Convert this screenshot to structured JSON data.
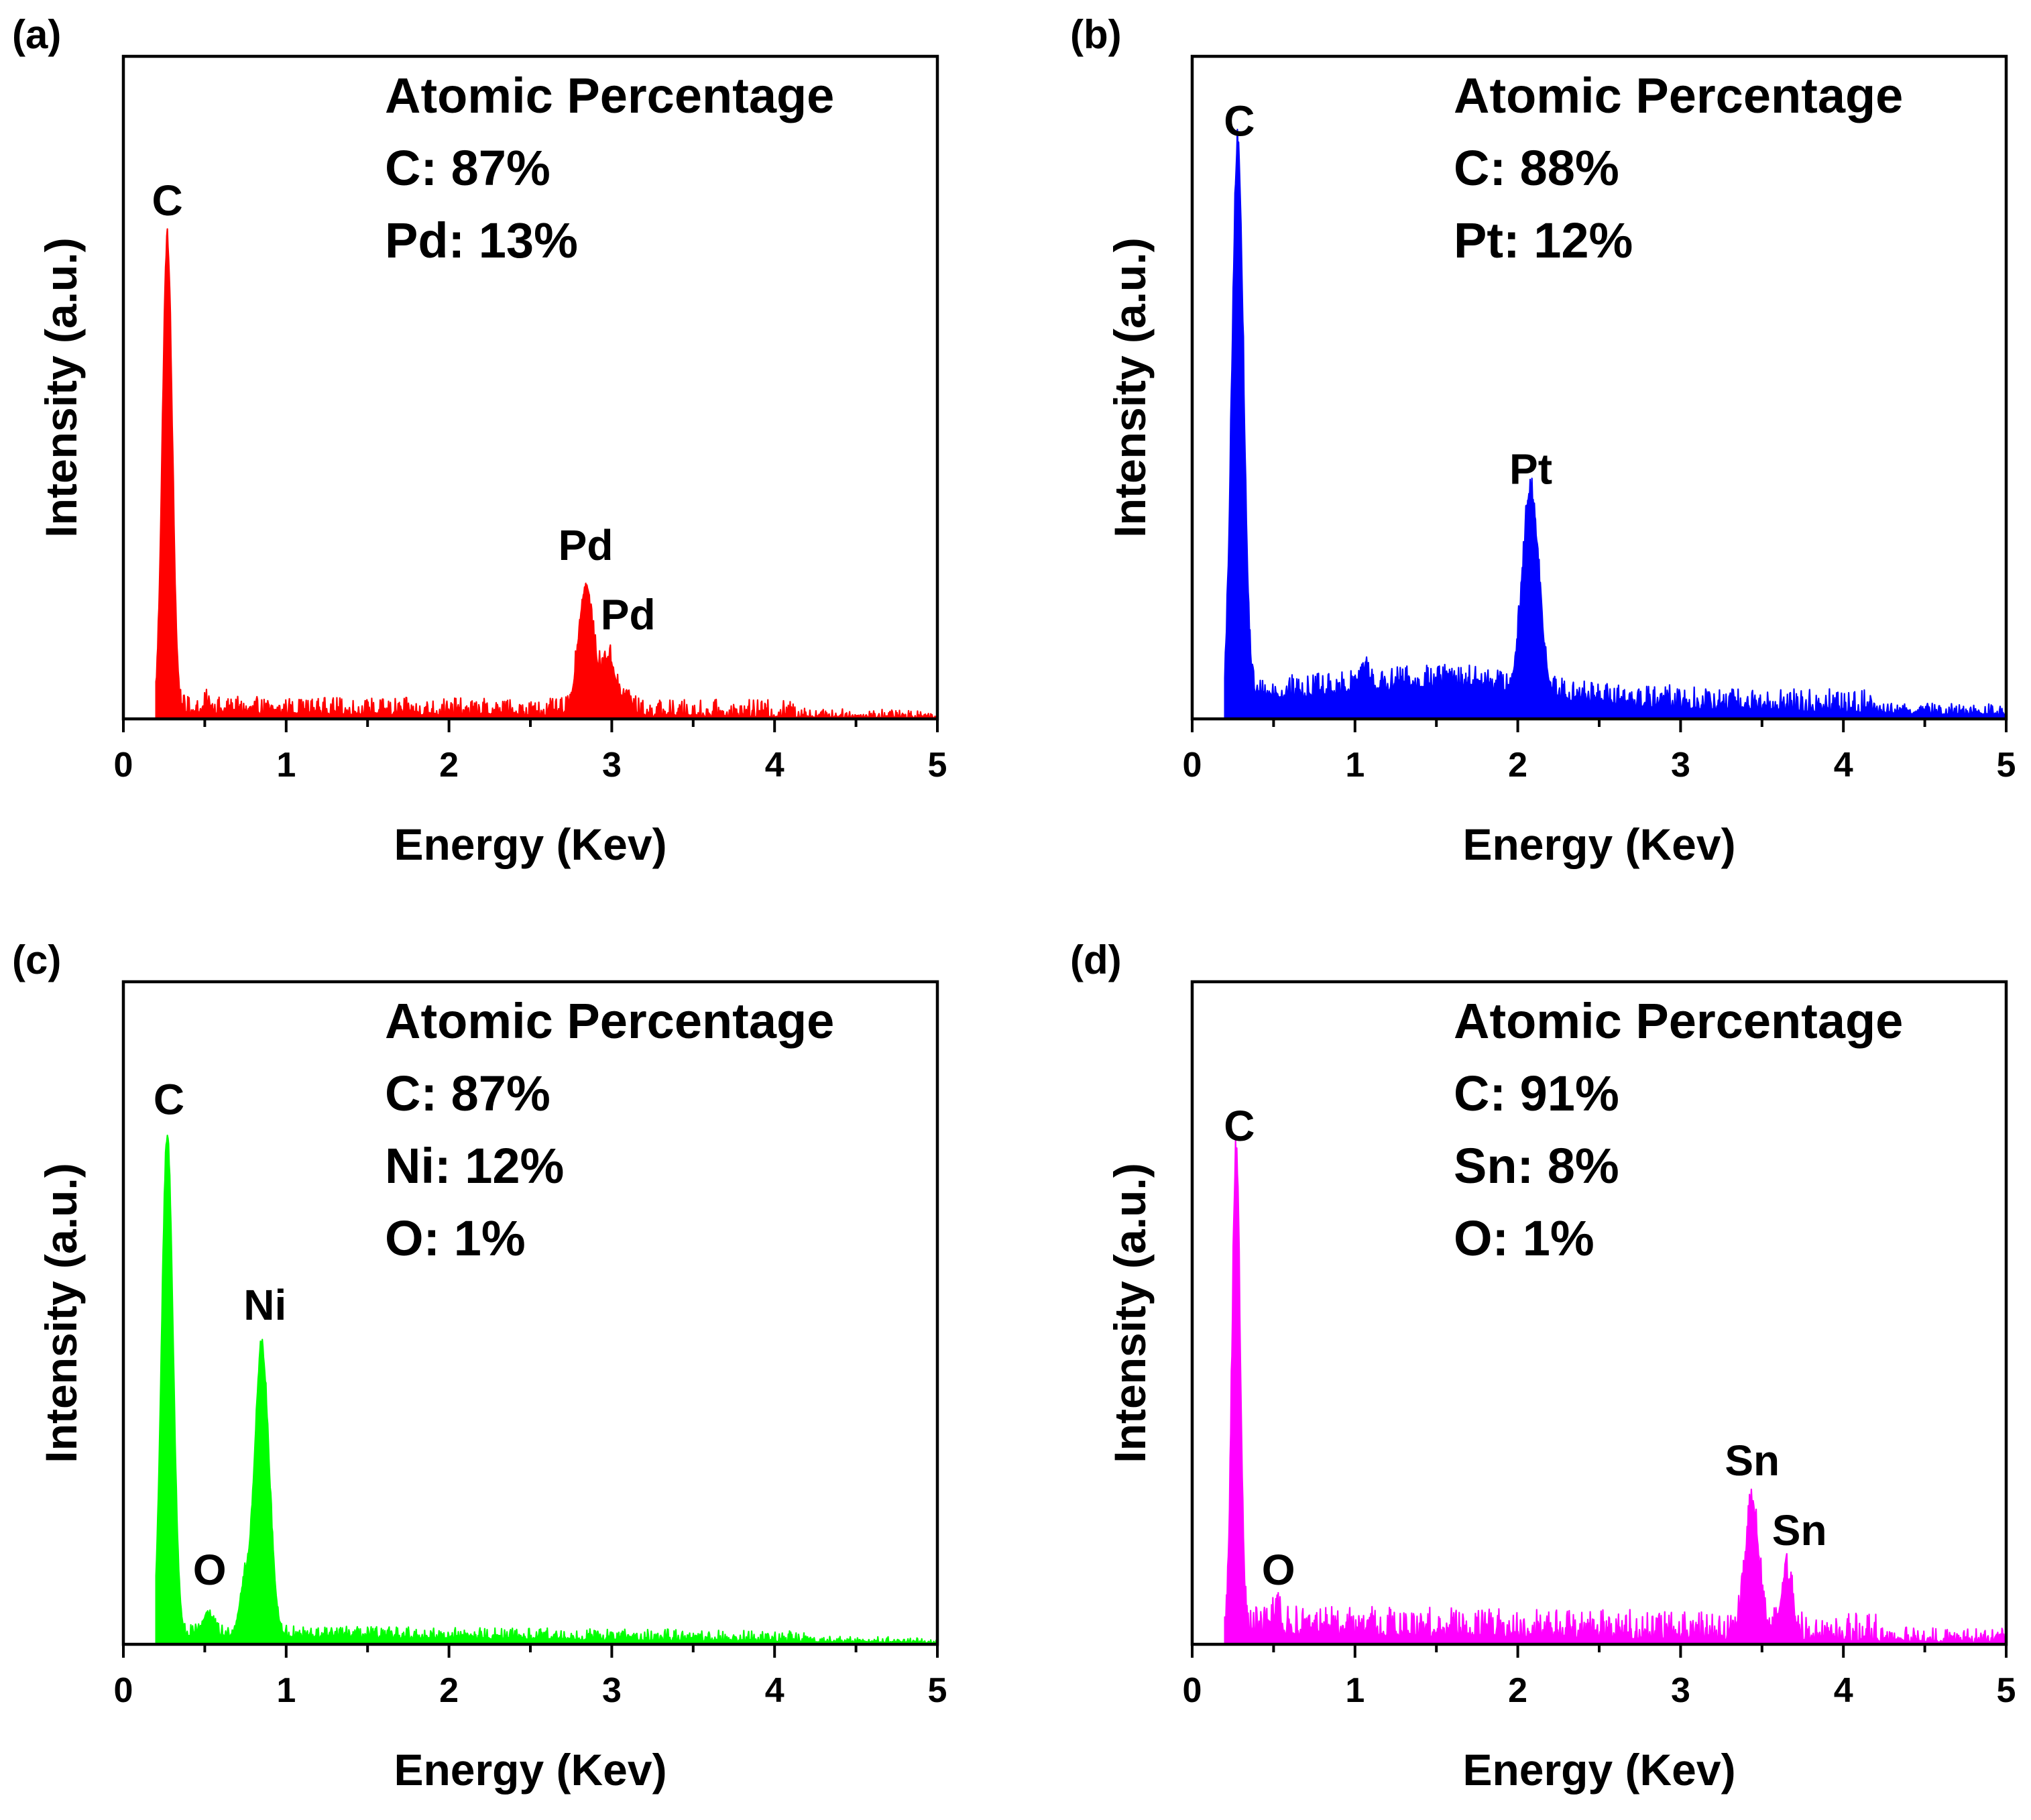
{
  "chart_data": [
    {
      "panel": "(a)",
      "type": "line",
      "color": "#ff0000",
      "xlabel": "Energy (Kev)",
      "ylabel": "Intensity (a.u.)",
      "xlim": [
        0,
        5
      ],
      "ylim": [
        0,
        100
      ],
      "xticks": [
        "0",
        "1",
        "2",
        "3",
        "4",
        "5"
      ],
      "annotation": [
        "Atomic Percentage",
        "C: 87%",
        "Pd: 13%"
      ],
      "peaks": [
        {
          "label": "C",
          "x": 0.27,
          "y": 71,
          "width": 0.03
        },
        {
          "label": "Pd",
          "x": 2.84,
          "y": 19,
          "width": 0.045
        },
        {
          "label": "Pd",
          "x": 2.98,
          "y": 8.5,
          "width": 0.045
        },
        {
          "label": "",
          "x": 3.1,
          "y": 2.5,
          "width": 0.03
        },
        {
          "label": "",
          "x": 0.52,
          "y": 1.2,
          "width": 0.02
        }
      ],
      "peak_labels": [
        {
          "text": "C",
          "x": 0.27,
          "y": 76
        },
        {
          "text": "Pd",
          "x": 2.84,
          "y": 24
        },
        {
          "text": "Pd",
          "x": 3.1,
          "y": 13.5
        }
      ],
      "baseline": 0.8,
      "noise": 1.2
    },
    {
      "panel": "(b)",
      "type": "line",
      "color": "#0000ff",
      "xlabel": "Energy (Kev)",
      "ylabel": "Intensity (a.u.)",
      "xlim": [
        0,
        5
      ],
      "ylim": [
        0,
        100
      ],
      "xticks": [
        "0",
        "1",
        "2",
        "3",
        "4",
        "5"
      ],
      "annotation": [
        "Atomic Percentage",
        "C: 88%",
        "Pt: 12%"
      ],
      "peaks": [
        {
          "label": "C",
          "x": 0.28,
          "y": 83,
          "width": 0.035
        },
        {
          "label": "Pt",
          "x": 2.08,
          "y": 30,
          "width": 0.05
        },
        {
          "label": "",
          "x": 1.05,
          "y": 3,
          "width": 0.03
        }
      ],
      "peak_labels": [
        {
          "text": "C",
          "x": 0.29,
          "y": 88
        },
        {
          "text": "Pt",
          "x": 2.08,
          "y": 35.5
        }
      ],
      "baseline": 3,
      "noise": 1.6,
      "hump": {
        "x": 1.6,
        "y": 2.5,
        "width": 0.7
      }
    },
    {
      "panel": "(c)",
      "type": "line",
      "color": "#00ff00",
      "xlabel": "Energy (Kev)",
      "ylabel": "Intensity (a.u.)",
      "xlim": [
        0,
        5
      ],
      "ylim": [
        0,
        100
      ],
      "xticks": [
        "0",
        "1",
        "2",
        "3",
        "4",
        "5"
      ],
      "annotation": [
        "Atomic Percentage",
        "C: 87%",
        "Ni: 12%",
        "O: 1%"
      ],
      "peaks": [
        {
          "label": "C",
          "x": 0.27,
          "y": 75,
          "width": 0.035
        },
        {
          "label": "O",
          "x": 0.52,
          "y": 3.5,
          "width": 0.03
        },
        {
          "label": "Ni",
          "x": 0.85,
          "y": 43.5,
          "width": 0.045
        },
        {
          "label": "",
          "x": 0.74,
          "y": 6.5,
          "width": 0.03
        }
      ],
      "peak_labels": [
        {
          "text": "C",
          "x": 0.28,
          "y": 80
        },
        {
          "text": "O",
          "x": 0.53,
          "y": 9
        },
        {
          "text": "Ni",
          "x": 0.87,
          "y": 49
        }
      ],
      "baseline": 1.2,
      "noise": 0.8
    },
    {
      "panel": "(d)",
      "type": "line",
      "color": "#ff00ff",
      "xlabel": "Energy (Kev)",
      "ylabel": "Intensity (a.u.)",
      "xlim": [
        0,
        5
      ],
      "ylim": [
        0,
        100
      ],
      "xticks": [
        "0",
        "1",
        "2",
        "3",
        "4",
        "5"
      ],
      "annotation": [
        "Atomic Percentage",
        "C: 91%",
        "Sn: 8%",
        "O: 1%"
      ],
      "peaks": [
        {
          "label": "C",
          "x": 0.27,
          "y": 71,
          "width": 0.025
        },
        {
          "label": "O",
          "x": 0.52,
          "y": 3.5,
          "width": 0.02
        },
        {
          "label": "Sn",
          "x": 3.44,
          "y": 20.5,
          "width": 0.04
        },
        {
          "label": "Sn",
          "x": 3.65,
          "y": 9.5,
          "width": 0.035
        }
      ],
      "peak_labels": [
        {
          "text": "C",
          "x": 0.29,
          "y": 76
        },
        {
          "text": "O",
          "x": 0.53,
          "y": 9
        },
        {
          "text": "Sn",
          "x": 3.44,
          "y": 25.5
        },
        {
          "text": "Sn",
          "x": 3.73,
          "y": 15
        }
      ],
      "baseline": 1.5,
      "noise": 2.0
    }
  ]
}
